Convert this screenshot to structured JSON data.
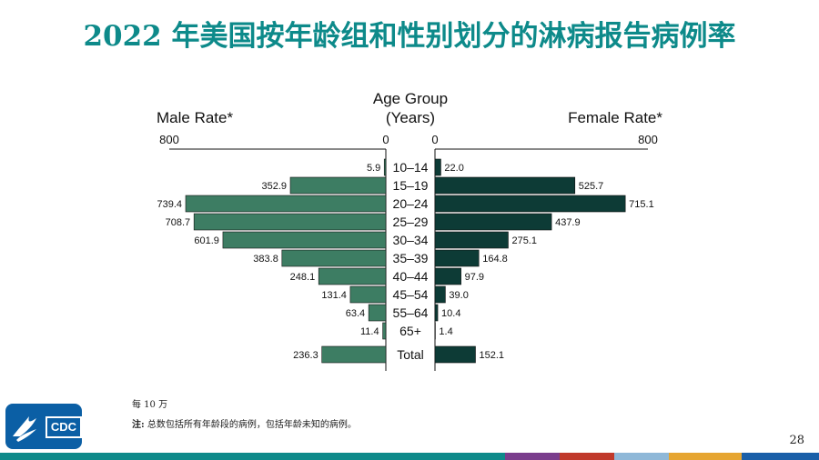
{
  "page": {
    "title": "2022 年美国按年龄组和性别划分的淋病报告病例率",
    "per_label": "每 10 万",
    "note_prefix": "注:",
    "note_text": "总数包括所有年龄段的病例，包括年龄未知的病例。",
    "page_number": "28",
    "logo_text": "CDC",
    "colors": {
      "title": "#0d8a8a",
      "male": "#3d7d63",
      "female": "#0d3b36",
      "bottom_bar": [
        "#0e8a8a",
        "#7a3d8c",
        "#c0392b",
        "#8fb8d8",
        "#e6a531",
        "#1a5fa8"
      ]
    }
  },
  "chart_data": {
    "type": "bar",
    "orientation": "population-pyramid",
    "center_label": [
      "Age Group",
      "(Years)"
    ],
    "male_label": "Male Rate*",
    "female_label": "Female Rate*",
    "xlim": [
      0,
      800
    ],
    "male_ticks": [
      "800",
      "0"
    ],
    "female_ticks": [
      "0",
      "800"
    ],
    "categories": [
      "10–14",
      "15–19",
      "20–24",
      "25–29",
      "30–34",
      "35–39",
      "40–44",
      "45–54",
      "55–64",
      "65+"
    ],
    "series": [
      {
        "name": "Male Rate*",
        "values": [
          5.9,
          352.9,
          739.4,
          708.7,
          601.9,
          383.8,
          248.1,
          131.4,
          63.4,
          11.4
        ]
      },
      {
        "name": "Female Rate*",
        "values": [
          22.0,
          525.7,
          715.1,
          437.9,
          275.1,
          164.8,
          97.9,
          39.0,
          10.4,
          1.4
        ]
      }
    ],
    "total": {
      "label": "Total",
      "male": 236.3,
      "female": 152.1
    }
  }
}
